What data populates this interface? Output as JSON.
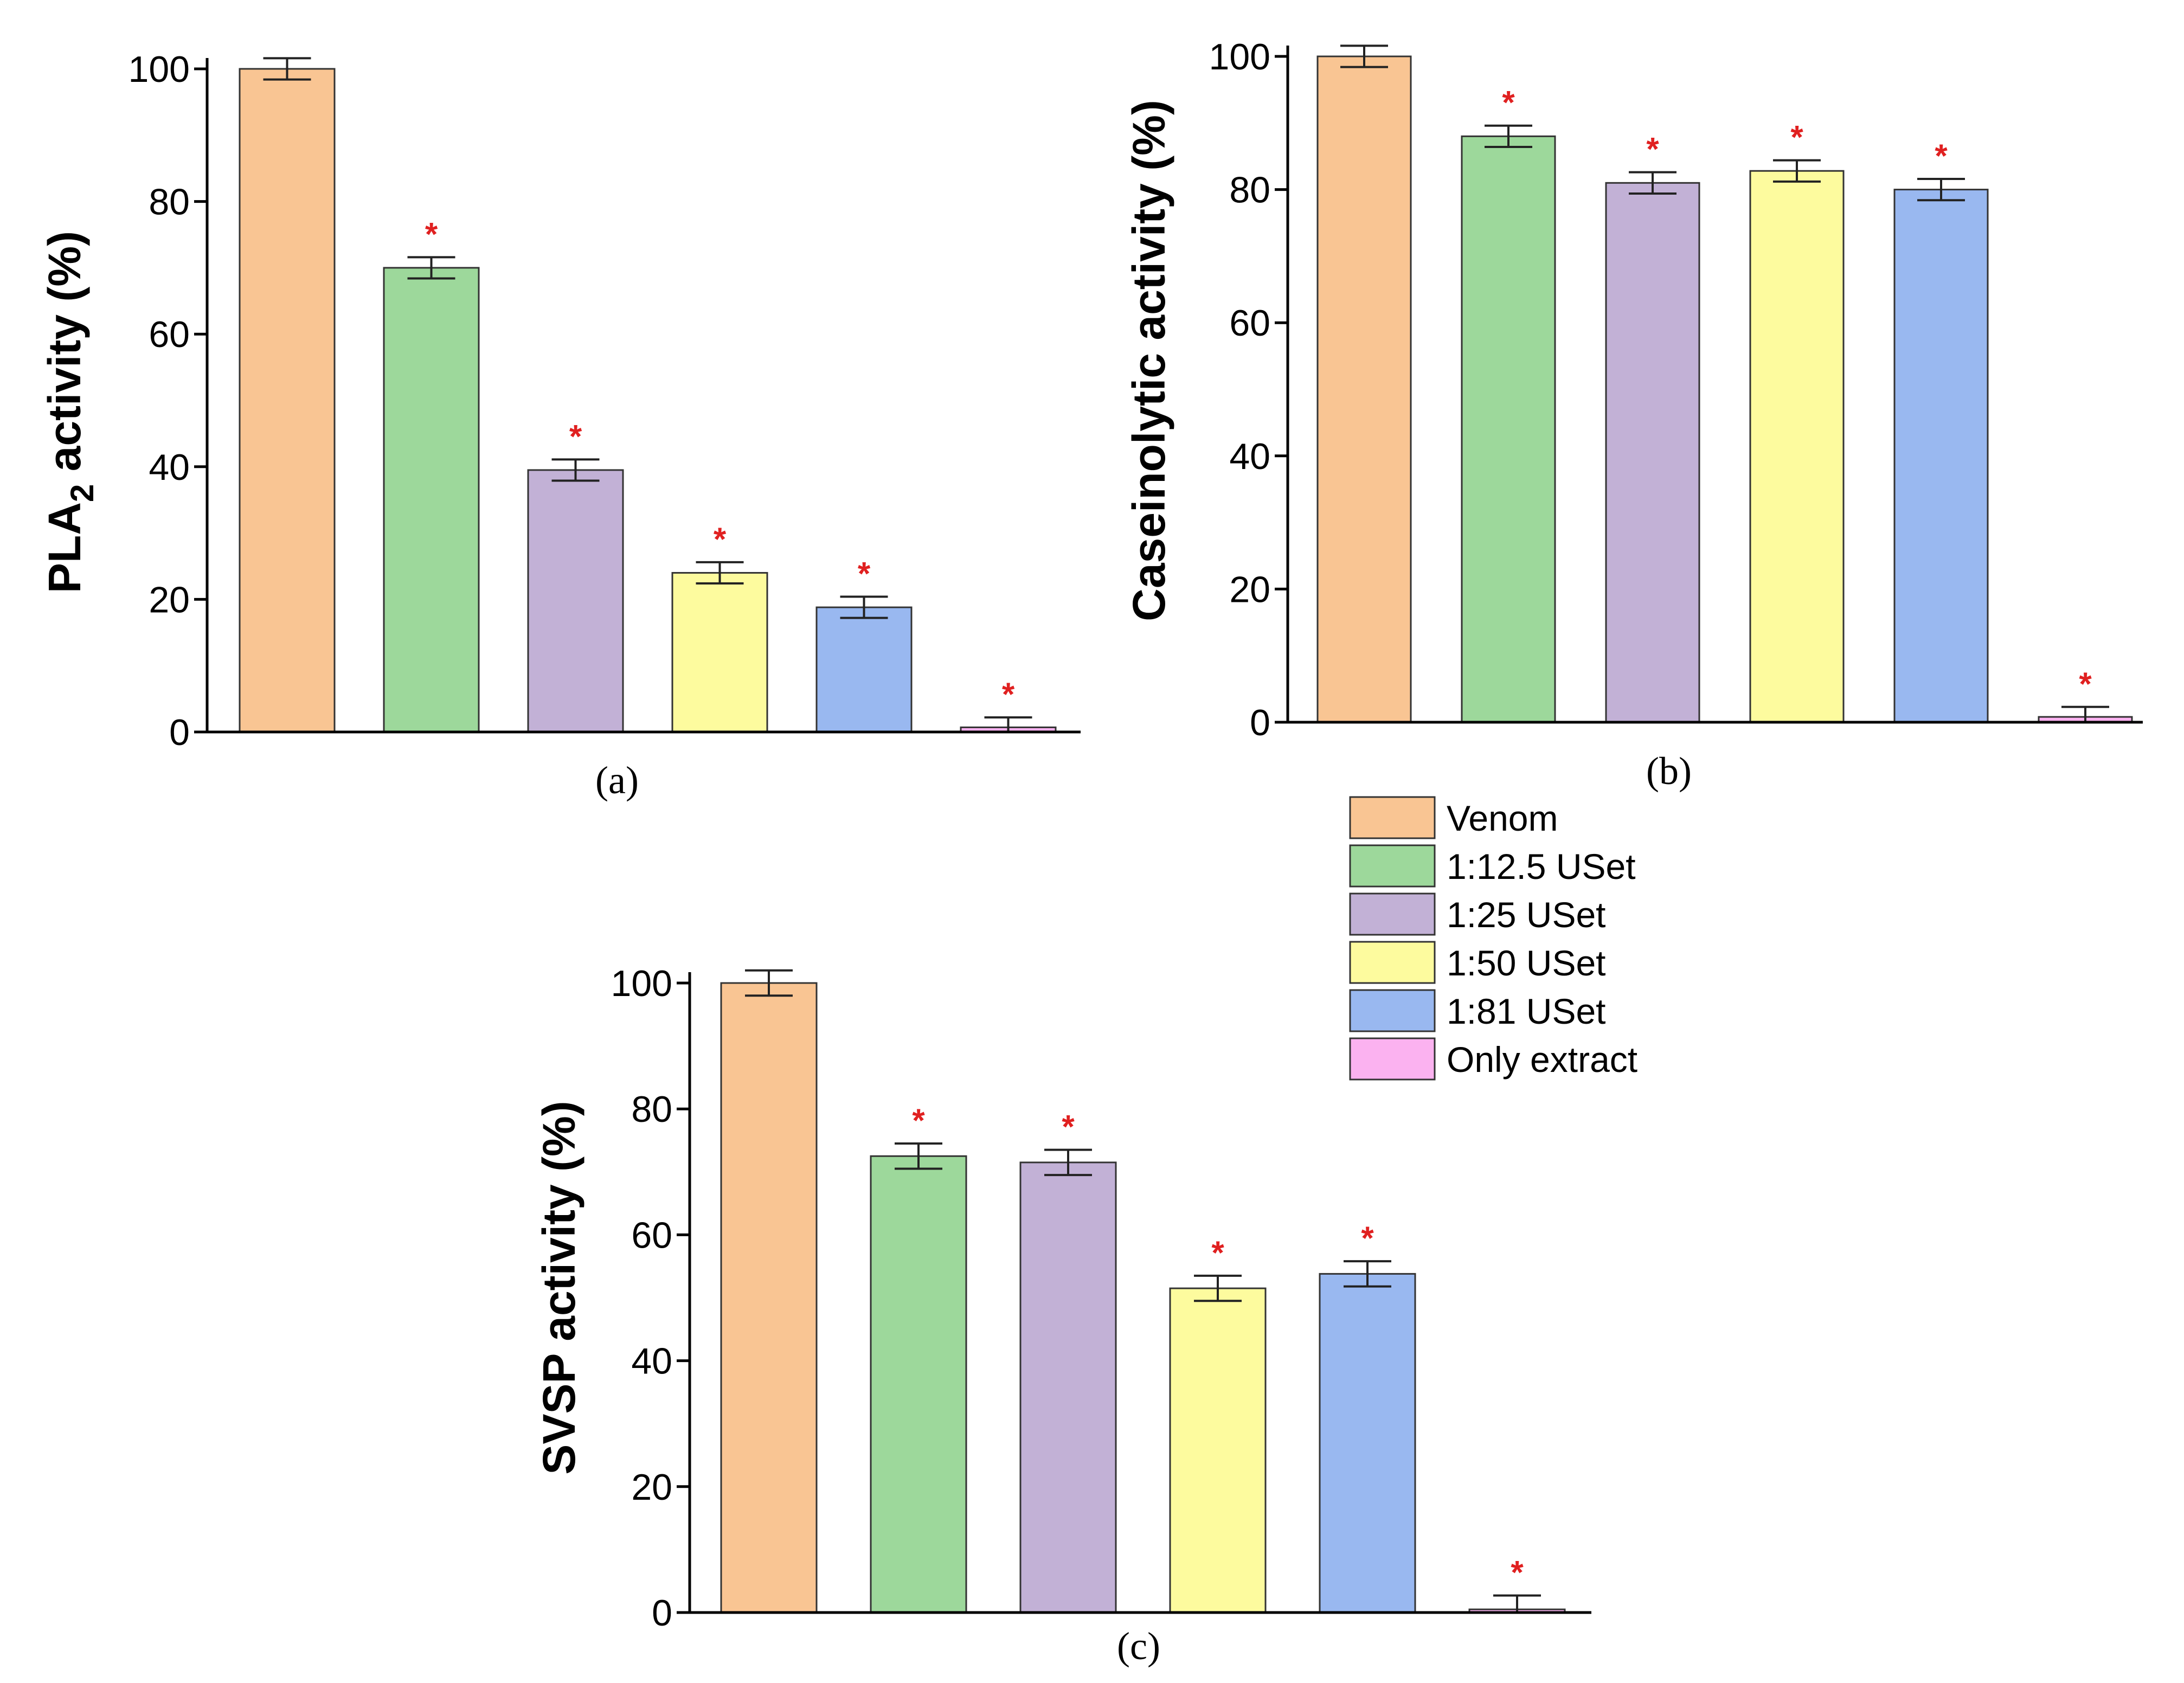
{
  "series_colors": {
    "Venom": "#F9C593",
    "1:12.5 USet": "#9DD89B",
    "1:25 USet": "#C2B1D6",
    "1:50 USet": "#FDFB9E",
    "1:81 USet": "#99B8F0",
    "Only extract": "#FBB2F0"
  },
  "legend": {
    "entries": [
      "Venom",
      "1:12.5 USet",
      "1:25 USet",
      "1:50 USet",
      "1:81 USet",
      "Only extract"
    ]
  },
  "chart_data": [
    {
      "type": "bar",
      "panel": "a",
      "caption": "(a)",
      "ylabel_main": "PLA",
      "ylabel_sub": "2",
      "ylabel_rest": " activity (%)",
      "categories": [
        "Venom",
        "1:12.5 USet",
        "1:25 USet",
        "1:50 USet",
        "1:81 USet",
        "Only extract"
      ],
      "values": [
        100,
        70,
        39.5,
        24,
        18.8,
        0.7
      ],
      "errors": [
        1.6,
        1.6,
        1.6,
        1.6,
        1.6,
        1.5
      ],
      "significant": [
        false,
        true,
        true,
        true,
        true,
        true
      ],
      "significance_marker": "*",
      "ylim": [
        0,
        100
      ],
      "yticks": [
        0,
        20,
        40,
        60,
        80,
        100
      ]
    },
    {
      "type": "bar",
      "panel": "b",
      "caption": "(b)",
      "ylabel_main": "Caseinolytic activity (%)",
      "ylabel_sub": "",
      "ylabel_rest": "",
      "categories": [
        "Venom",
        "1:12.5 USet",
        "1:25 USet",
        "1:50 USet",
        "1:81 USet",
        "Only extract"
      ],
      "values": [
        100,
        88,
        81,
        82.8,
        80,
        0.8
      ],
      "errors": [
        1.6,
        1.6,
        1.6,
        1.6,
        1.6,
        1.5
      ],
      "significant": [
        false,
        true,
        true,
        true,
        true,
        true
      ],
      "significance_marker": "*",
      "ylim": [
        0,
        100
      ],
      "yticks": [
        0,
        20,
        40,
        60,
        80,
        100
      ]
    },
    {
      "type": "bar",
      "panel": "c",
      "caption": "(c)",
      "ylabel_main": "SVSP activity (%)",
      "ylabel_sub": "",
      "ylabel_rest": "",
      "categories": [
        "Venom",
        "1:12.5 USet",
        "1:25 USet",
        "1:50 USet",
        "1:81 USet",
        "Only extract"
      ],
      "values": [
        100,
        72.5,
        71.5,
        51.5,
        53.8,
        0.5
      ],
      "errors": [
        2,
        2,
        2,
        2,
        2,
        2.2
      ],
      "significant": [
        false,
        true,
        true,
        true,
        true,
        true
      ],
      "significance_marker": "*",
      "ylim": [
        0,
        100
      ],
      "yticks": [
        0,
        20,
        40,
        60,
        80,
        100
      ]
    }
  ]
}
